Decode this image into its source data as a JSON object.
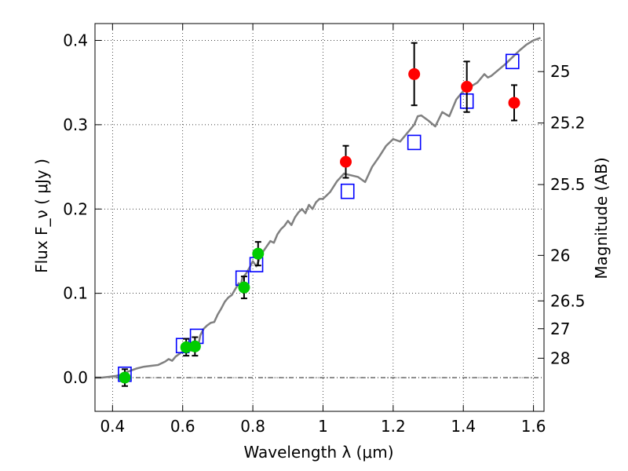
{
  "chart_data": {
    "type": "scatter",
    "title": "",
    "xlabel": "Wavelength  λ (μm)",
    "ylabel": "Flux  F_ν  ( μJy )",
    "ylabel_right": "Magnitude (AB)",
    "xlim": [
      0.35,
      1.63
    ],
    "ylim": [
      -0.04,
      0.42
    ],
    "grid": true,
    "x_ticks": [
      0.4,
      0.6,
      0.8,
      1.0,
      1.2,
      1.4,
      1.6
    ],
    "x_tick_labels": [
      "0.4",
      "0.6",
      "0.8",
      "1",
      "1.2",
      "1.4",
      "1.6"
    ],
    "y_ticks": [
      0.0,
      0.1,
      0.2,
      0.3,
      0.4
    ],
    "y_tick_labels": [
      "0.0",
      "0.1",
      "0.2",
      "0.3",
      "0.4"
    ],
    "right_ticks": [
      {
        "label": "25",
        "flux": 0.363
      },
      {
        "label": "25.2",
        "flux": 0.302
      },
      {
        "label": "25.5",
        "flux": 0.229
      },
      {
        "label": "26",
        "flux": 0.145
      },
      {
        "label": "26.5",
        "flux": 0.091
      },
      {
        "label": "27",
        "flux": 0.058
      },
      {
        "label": "28",
        "flux": 0.023
      }
    ],
    "series": [
      {
        "kind": "line",
        "color": "#808080",
        "x": [
          0.35,
          0.37,
          0.39,
          0.41,
          0.42,
          0.43,
          0.45,
          0.47,
          0.49,
          0.51,
          0.53,
          0.55,
          0.56,
          0.57,
          0.58,
          0.59,
          0.6,
          0.61,
          0.62,
          0.625,
          0.63,
          0.64,
          0.645,
          0.65,
          0.66,
          0.67,
          0.68,
          0.69,
          0.7,
          0.71,
          0.72,
          0.73,
          0.74,
          0.75,
          0.76,
          0.765,
          0.77,
          0.78,
          0.79,
          0.8,
          0.81,
          0.82,
          0.83,
          0.84,
          0.85,
          0.86,
          0.87,
          0.88,
          0.89,
          0.9,
          0.91,
          0.92,
          0.93,
          0.94,
          0.95,
          0.96,
          0.97,
          0.98,
          0.99,
          1.0,
          1.02,
          1.04,
          1.06,
          1.08,
          1.1,
          1.12,
          1.14,
          1.16,
          1.18,
          1.2,
          1.22,
          1.24,
          1.26,
          1.27,
          1.28,
          1.29,
          1.3,
          1.32,
          1.34,
          1.36,
          1.38,
          1.4,
          1.42,
          1.44,
          1.45,
          1.46,
          1.47,
          1.48,
          1.5,
          1.52,
          1.54,
          1.56,
          1.58,
          1.6,
          1.62
        ],
        "y": [
          0.0,
          0.0,
          0.001,
          0.002,
          0.003,
          0.005,
          0.008,
          0.011,
          0.013,
          0.014,
          0.015,
          0.019,
          0.022,
          0.02,
          0.025,
          0.028,
          0.031,
          0.03,
          0.034,
          0.032,
          0.038,
          0.041,
          0.039,
          0.05,
          0.058,
          0.062,
          0.065,
          0.066,
          0.075,
          0.082,
          0.09,
          0.095,
          0.098,
          0.105,
          0.112,
          0.108,
          0.118,
          0.123,
          0.13,
          0.138,
          0.132,
          0.142,
          0.15,
          0.156,
          0.162,
          0.16,
          0.17,
          0.176,
          0.18,
          0.186,
          0.181,
          0.19,
          0.196,
          0.2,
          0.195,
          0.205,
          0.2,
          0.208,
          0.212,
          0.212,
          0.22,
          0.233,
          0.242,
          0.24,
          0.238,
          0.232,
          0.25,
          0.262,
          0.275,
          0.283,
          0.28,
          0.29,
          0.3,
          0.31,
          0.311,
          0.308,
          0.305,
          0.298,
          0.315,
          0.31,
          0.33,
          0.34,
          0.345,
          0.35,
          0.355,
          0.36,
          0.356,
          0.358,
          0.365,
          0.372,
          0.38,
          0.388,
          0.395,
          0.4,
          0.403
        ]
      },
      {
        "kind": "model-squares",
        "color": "#0000ff",
        "points": [
          {
            "x": 0.435,
            "y": 0.004
          },
          {
            "x": 0.6,
            "y": 0.038
          },
          {
            "x": 0.64,
            "y": 0.049
          },
          {
            "x": 0.77,
            "y": 0.118
          },
          {
            "x": 0.81,
            "y": 0.134
          },
          {
            "x": 1.07,
            "y": 0.221
          },
          {
            "x": 1.26,
            "y": 0.279
          },
          {
            "x": 1.41,
            "y": 0.328
          },
          {
            "x": 1.54,
            "y": 0.375
          }
        ]
      },
      {
        "kind": "observed-green",
        "color": "#00cc00",
        "points": [
          {
            "x": 0.435,
            "y": 0.0,
            "err": 0.01
          },
          {
            "x": 0.61,
            "y": 0.036,
            "err": 0.01
          },
          {
            "x": 0.635,
            "y": 0.037,
            "err": 0.011
          },
          {
            "x": 0.775,
            "y": 0.107,
            "err": 0.013
          },
          {
            "x": 0.815,
            "y": 0.147,
            "err": 0.014
          }
        ]
      },
      {
        "kind": "observed-red",
        "color": "#ff0000",
        "points": [
          {
            "x": 1.065,
            "y": 0.256,
            "err": 0.019
          },
          {
            "x": 1.26,
            "y": 0.36,
            "err": 0.037
          },
          {
            "x": 1.41,
            "y": 0.345,
            "err": 0.03
          },
          {
            "x": 1.545,
            "y": 0.326,
            "err": 0.021
          }
        ]
      }
    ]
  }
}
